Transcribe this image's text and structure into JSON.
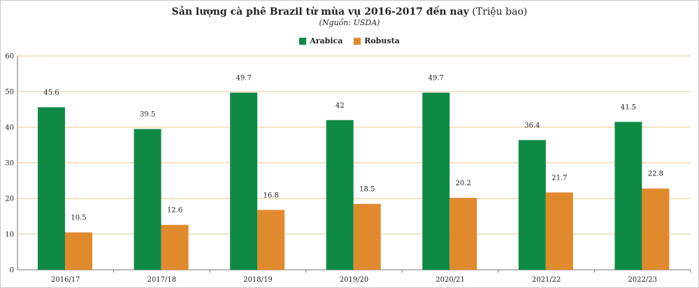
{
  "chart_data": {
    "type": "bar",
    "title_bold": "Sản lượng cà phê Brazil từ mùa vụ 2016-2017 đến nay",
    "title_normal": "(Triệu bao)",
    "subtitle": "(Nguồn: USDA)",
    "categories": [
      "2016/17",
      "2017/18",
      "2018/19",
      "2019/20",
      "2020/21",
      "2021/22",
      "2022/23"
    ],
    "series": [
      {
        "name": "Arabica",
        "values": [
          45.6,
          39.5,
          49.7,
          42,
          49.7,
          36.4,
          41.5
        ],
        "labels": [
          "45.6",
          "39.5",
          "49.7",
          "42",
          "49.7",
          "36.4",
          "41.5"
        ],
        "color": "#0f8a45"
      },
      {
        "name": "Robusta",
        "values": [
          10.5,
          12.6,
          16.8,
          18.5,
          20.2,
          21.7,
          22.8
        ],
        "labels": [
          "10.5",
          "12.6",
          "16.8",
          "18.5",
          "20.2",
          "21.7",
          "22.8"
        ],
        "color": "#e08a2e"
      }
    ],
    "yticks": [
      "0",
      "10",
      "20",
      "30",
      "40",
      "50",
      "60"
    ],
    "ylim": [
      0,
      60
    ],
    "grid": true,
    "grid_color": "#e7c98a",
    "legend_position": "top-center",
    "xlabel": "",
    "ylabel": ""
  }
}
